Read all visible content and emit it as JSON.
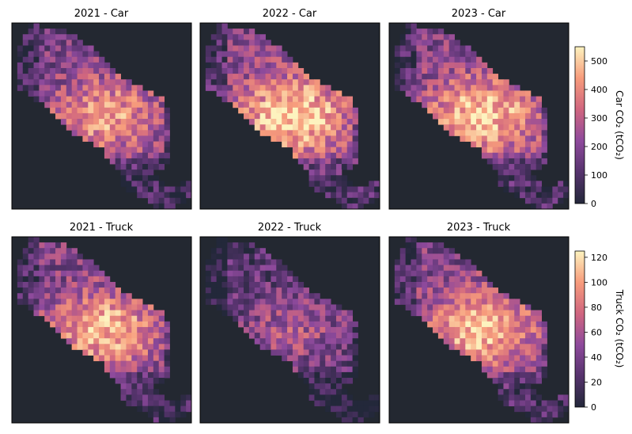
{
  "chart_data": {
    "type": "heatmap",
    "grid": {
      "rows": 6,
      "cols": 3
    },
    "panels": [
      {
        "title": "2021 - Car",
        "mode": "Car",
        "year": 2021,
        "intensity": 0.66
      },
      {
        "title": "2022 - Car",
        "mode": "Car",
        "year": 2022,
        "intensity": 0.8
      },
      {
        "title": "2023 - Car",
        "mode": "Car",
        "year": 2023,
        "intensity": 0.76
      },
      {
        "title": "2021 - Truck",
        "mode": "Truck",
        "year": 2021,
        "intensity": 0.72
      },
      {
        "title": "2022 - Truck",
        "mode": "Truck",
        "year": 2022,
        "intensity": 0.42
      },
      {
        "title": "2023 - Truck",
        "mode": "Truck",
        "year": 2023,
        "intensity": 0.75
      }
    ],
    "colorbars": [
      {
        "label": "Car CO₂ (tCO₂)",
        "range": [
          0,
          550
        ],
        "ticks": [
          0,
          100,
          200,
          300,
          400,
          500
        ]
      },
      {
        "label": "Truck CO₂ (tCO₂)",
        "range": [
          0,
          125
        ],
        "ticks": [
          0,
          20,
          40,
          60,
          80,
          100,
          120
        ]
      }
    ],
    "colormap": "magma",
    "basemap_color": "#232831"
  }
}
